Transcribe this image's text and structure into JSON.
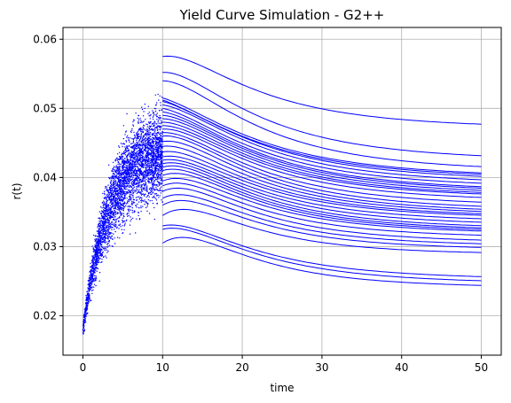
{
  "chart_data": {
    "type": "line",
    "title": "Yield Curve Simulation - G2++",
    "xlabel": "time",
    "ylabel": "r(t)",
    "xlim": [
      -2.5,
      52.5
    ],
    "ylim": [
      0.0143,
      0.0617
    ],
    "xticks": [
      0,
      10,
      20,
      30,
      40,
      50
    ],
    "yticks": [
      0.02,
      0.03,
      0.04,
      0.05,
      0.06
    ],
    "xtick_labels": [
      "0",
      "10",
      "20",
      "30",
      "40",
      "50"
    ],
    "ytick_labels": [
      "0.02",
      "0.03",
      "0.04",
      "0.05",
      "0.06"
    ],
    "grid": true,
    "color": "#0000ff",
    "scatter": {
      "description_of_shape": "simulated short-rate paths for t in [0,10]",
      "x_range": [
        0,
        10
      ],
      "start_level": 0.018,
      "end_range": [
        0.03,
        0.058
      ],
      "point_count": 4000
    },
    "curves": {
      "x_range": [
        10,
        50
      ],
      "peak_time": 15,
      "start_values": [
        0.0575,
        0.0552,
        0.054,
        0.0515,
        0.0512,
        0.051,
        0.0505,
        0.05,
        0.0495,
        0.049,
        0.0485,
        0.048,
        0.0475,
        0.047,
        0.0465,
        0.046,
        0.0452,
        0.0445,
        0.0437,
        0.043,
        0.0425,
        0.042,
        0.0415,
        0.041,
        0.0403,
        0.0395,
        0.0388,
        0.038,
        0.037,
        0.036,
        0.0345,
        0.033,
        0.0325,
        0.0305
      ],
      "end_values": [
        0.0471,
        0.0424,
        0.0408,
        0.04,
        0.0398,
        0.0395,
        0.039,
        0.0385,
        0.038,
        0.0378,
        0.0375,
        0.0372,
        0.037,
        0.0365,
        0.0358,
        0.0352,
        0.0348,
        0.0345,
        0.0342,
        0.034,
        0.0335,
        0.033,
        0.0325,
        0.0322,
        0.032,
        0.0318,
        0.0312,
        0.0305,
        0.03,
        0.0295,
        0.0288,
        0.0252,
        0.0246,
        0.024
      ],
      "peak_bumps": [
        0.0017,
        0.0018,
        0.0017,
        0.0009,
        0.0008,
        0.001,
        0.0012,
        0.0011,
        0.0012,
        0.0013,
        0.0014,
        0.0014,
        0.0014,
        0.0015,
        0.0015,
        0.0016,
        0.0017,
        0.0016,
        0.0016,
        0.0016,
        0.0016,
        0.0017,
        0.0018,
        0.0018,
        0.0019,
        0.0019,
        0.0019,
        0.002,
        0.002,
        0.0021,
        0.0022,
        0.0015,
        0.0016,
        0.0023
      ]
    }
  }
}
